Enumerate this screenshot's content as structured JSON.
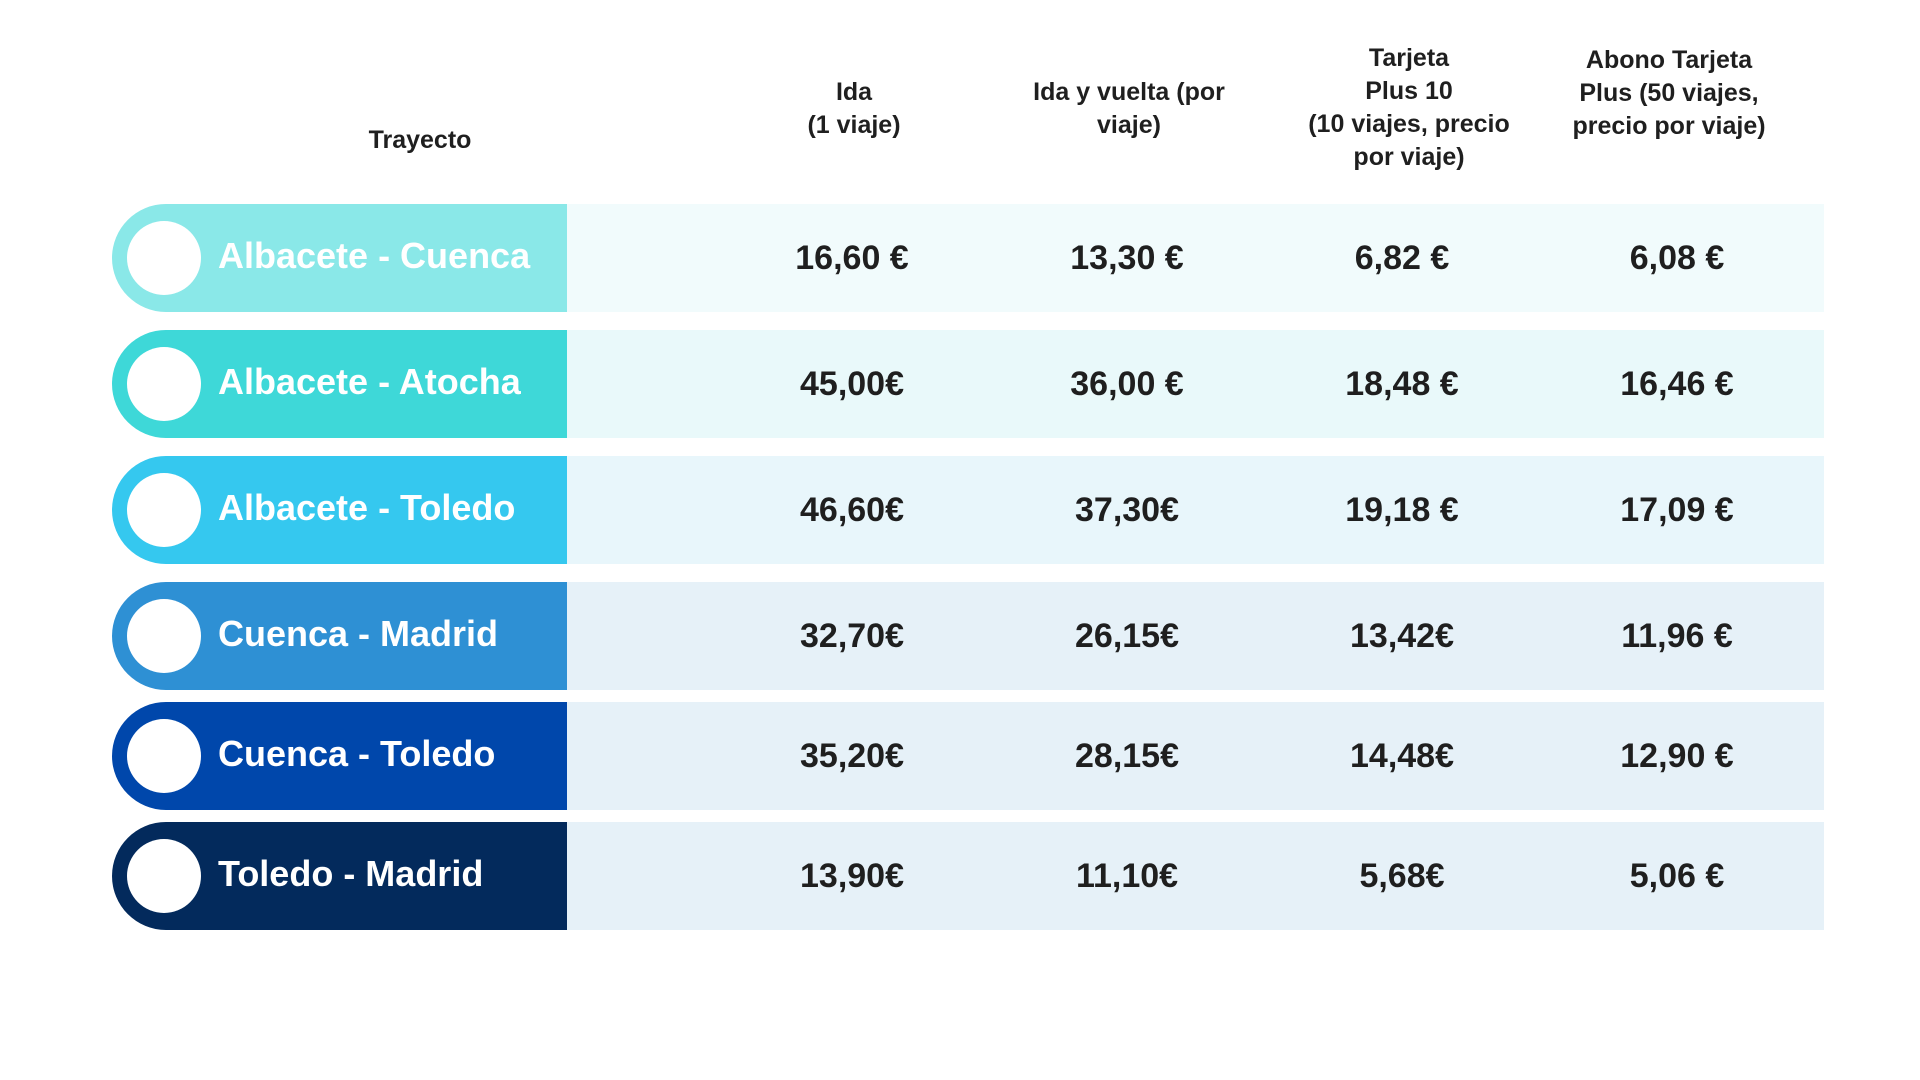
{
  "headers": {
    "route": "Trayecto",
    "ida": "Ida\n(1 viaje)",
    "ida_vuelta": "Ida y vuelta (por\nviaje)",
    "tarjeta_plus10": "Tarjeta\nPlus 10\n(10 viajes, precio\npor viaje)",
    "abono_plus": "Abono Tarjeta\nPlus (50 viajes,\nprecio por viaje)"
  },
  "rows": [
    {
      "route": "Albacete - Cuenca",
      "ida": "16,60 €",
      "ida_vuelta": "13,30 €",
      "tarjeta_plus10": "6,82 €",
      "abono_plus": "6,08 €",
      "color": "#8ae8e8",
      "band": "#f1fbfc"
    },
    {
      "route": "Albacete - Atocha",
      "ida": "45,00€",
      "ida_vuelta": "36,00 €",
      "tarjeta_plus10": "18,48 €",
      "abono_plus": "16,46 €",
      "color": "#3ed8d8",
      "band": "#e9f9fa"
    },
    {
      "route": "Albacete - Toledo",
      "ida": "46,60€",
      "ida_vuelta": "37,30€",
      "tarjeta_plus10": "19,18 €",
      "abono_plus": "17,09 €",
      "color": "#35c8ef",
      "band": "#e8f6fb"
    },
    {
      "route": "Cuenca - Madrid",
      "ida": "32,70€",
      "ida_vuelta": "26,15€",
      "tarjeta_plus10": "13,42€",
      "abono_plus": "11,96 €",
      "color": "#2e90d4",
      "band": "#e6f1f8"
    },
    {
      "route": "Cuenca - Toledo",
      "ida": "35,20€",
      "ida_vuelta": "28,15€",
      "tarjeta_plus10": "14,48€",
      "abono_plus": "12,90 €",
      "color": "#0047ab",
      "band": "#e6f1f8"
    },
    {
      "route": "Toledo - Madrid",
      "ida": "13,90€",
      "ida_vuelta": "11,10€",
      "tarjeta_plus10": "5,68€",
      "abono_plus": "5,06 €",
      "color": "#032a5c",
      "band": "#e6f1f8"
    }
  ]
}
